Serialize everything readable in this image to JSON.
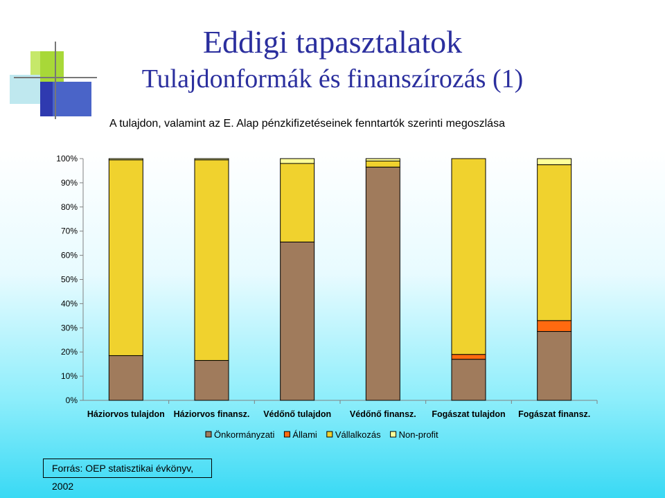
{
  "slide": {
    "title": "Eddigi tapasztalatok",
    "subtitle": "Tulajdonformák és finanszírozás (1)",
    "source": "Forrás: OEP statisztikai évkönyv, 2002"
  },
  "colors": {
    "title": "#2b2f9e",
    "onkormanyzati": "#a07b5c",
    "allami": "#ff6a10",
    "vallalkozas": "#f0d22e",
    "nonprofit": "#ffff99"
  },
  "chart_data": {
    "type": "bar",
    "stacked": true,
    "title": "A tulajdon, valamint az E. Alap pénzkifizetéseinek fenntartók szerinti megoszlása",
    "categories": [
      "Háziorvos tulajdon",
      "Háziorvos finansz.",
      "Védőnő tulajdon",
      "Védőnő finansz.",
      "Fogászat tulajdon",
      "Fogászat finansz."
    ],
    "series": [
      {
        "name": "Önkormányzati",
        "color": "#a07b5c",
        "values": [
          18.5,
          16.5,
          65.5,
          96.5,
          17.0,
          28.5
        ]
      },
      {
        "name": "Állami",
        "color": "#ff6a10",
        "values": [
          0,
          0,
          0,
          0,
          2.0,
          4.5
        ]
      },
      {
        "name": "Vállalkozás",
        "color": "#f0d22e",
        "values": [
          81.0,
          83.0,
          32.5,
          2.5,
          81.0,
          64.5
        ]
      },
      {
        "name": "Non-profit",
        "color": "#ffff99",
        "values": [
          0.5,
          0.5,
          2.0,
          1.0,
          0,
          2.5
        ]
      }
    ],
    "ylim": [
      0,
      100
    ],
    "yticks": [
      "0%",
      "10%",
      "20%",
      "30%",
      "40%",
      "50%",
      "60%",
      "70%",
      "80%",
      "90%",
      "100%"
    ],
    "legend_position": "bottom"
  }
}
